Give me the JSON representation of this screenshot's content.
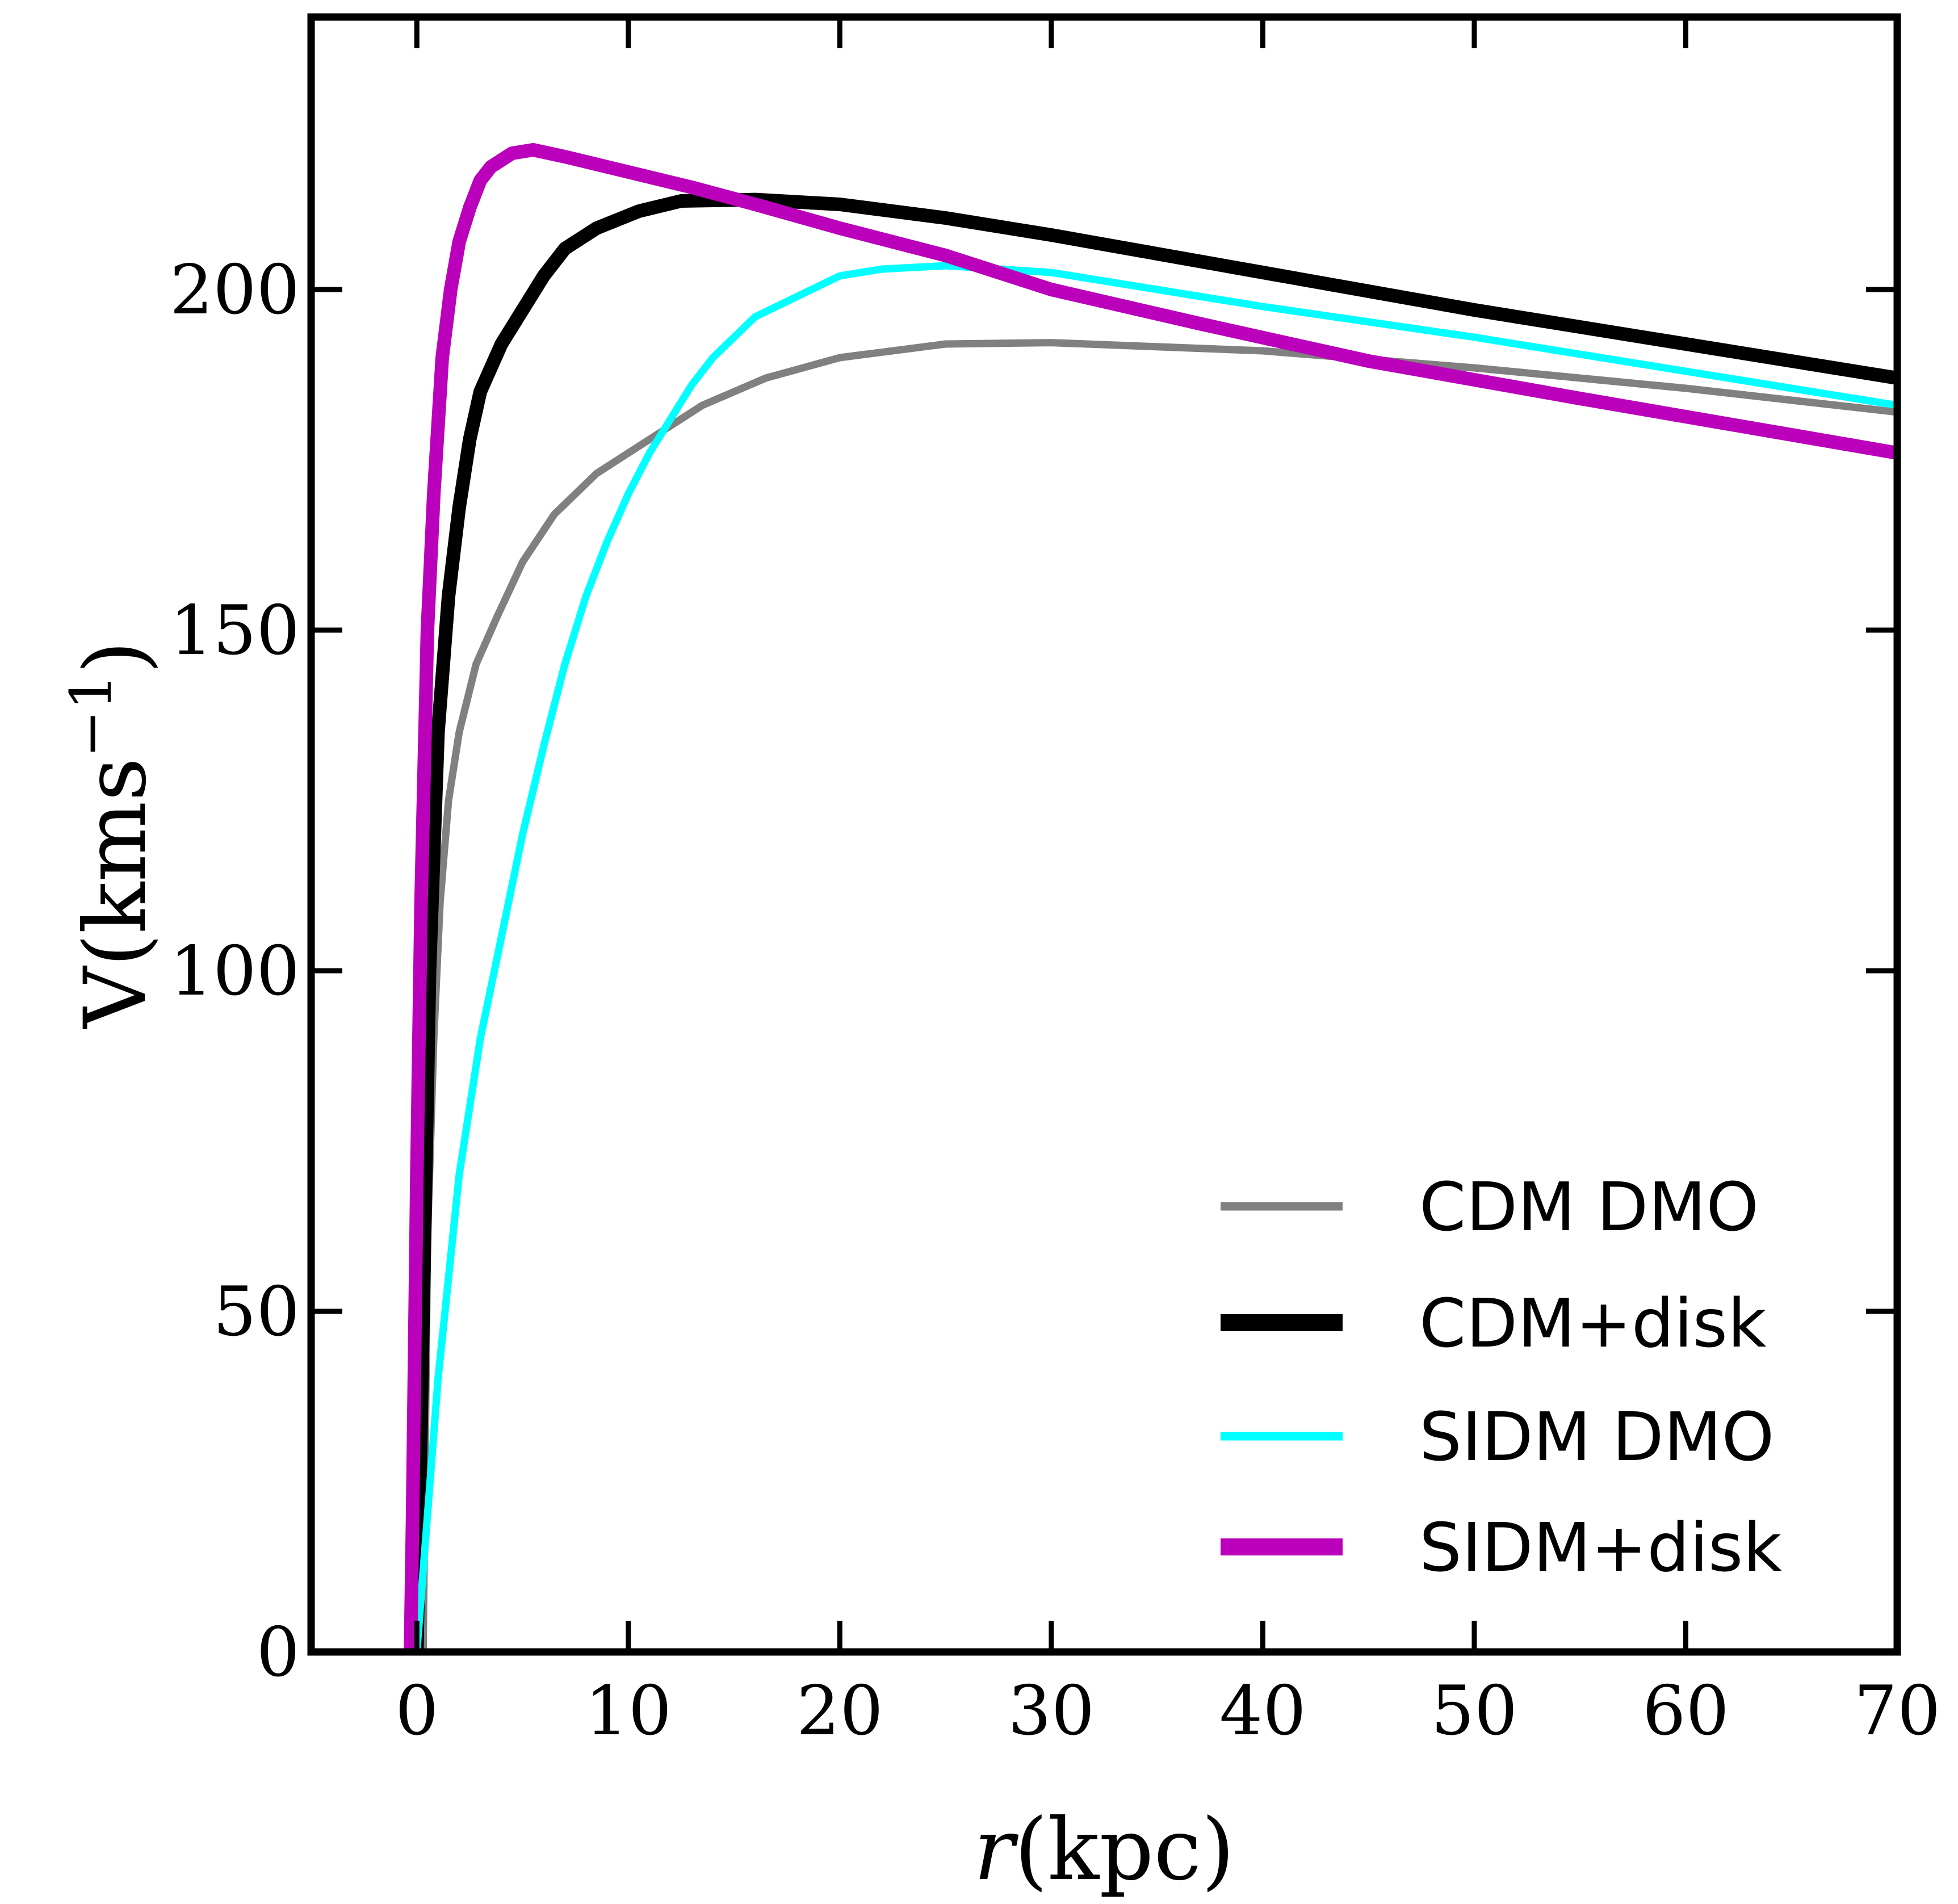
{
  "chart_data": {
    "type": "line",
    "xlabel": "r(kpc)",
    "ylabel": "V(kms",
    "ylabel_superscript": "−1",
    "ylabel_close": ")",
    "xlim": [
      -5,
      70
    ],
    "ylim": [
      0,
      240
    ],
    "xticks": [
      0,
      10,
      20,
      30,
      40,
      50,
      60,
      70
    ],
    "yticks": [
      0,
      50,
      100,
      150,
      200
    ],
    "x_tick_labels": [
      "0",
      "10",
      "20",
      "30",
      "40",
      "50",
      "60",
      "70"
    ],
    "y_tick_labels": [
      "0",
      "50",
      "100",
      "150",
      "200"
    ],
    "legend_position": "lower-right",
    "series": [
      {
        "name": "CDM DMO",
        "color": "#808080",
        "weight": "thin",
        "points": [
          [
            0.3,
            0
          ],
          [
            0.5,
            60
          ],
          [
            0.8,
            90
          ],
          [
            1.1,
            110
          ],
          [
            1.5,
            125
          ],
          [
            2,
            135
          ],
          [
            2.8,
            145
          ],
          [
            3.8,
            152
          ],
          [
            5,
            160
          ],
          [
            6.5,
            167
          ],
          [
            8.5,
            173
          ],
          [
            11,
            178
          ],
          [
            13.5,
            183
          ],
          [
            16.5,
            187
          ],
          [
            20,
            190
          ],
          [
            25,
            192
          ],
          [
            30,
            192.2
          ],
          [
            40,
            191
          ],
          [
            50,
            188.5
          ],
          [
            60,
            185.5
          ],
          [
            70,
            182
          ]
        ]
      },
      {
        "name": "CDM+disk",
        "color": "#000000",
        "weight": "thick",
        "points": [
          [
            0,
            0
          ],
          [
            0.3,
            50
          ],
          [
            0.6,
            100
          ],
          [
            1,
            135
          ],
          [
            1.5,
            155
          ],
          [
            2,
            168
          ],
          [
            2.5,
            178
          ],
          [
            3,
            185
          ],
          [
            4,
            192
          ],
          [
            5,
            197
          ],
          [
            6,
            202
          ],
          [
            7,
            206
          ],
          [
            8.5,
            209
          ],
          [
            10.5,
            211.5
          ],
          [
            12.5,
            213
          ],
          [
            16,
            213.2
          ],
          [
            20,
            212.5
          ],
          [
            25,
            210.5
          ],
          [
            30,
            208
          ],
          [
            40,
            202.5
          ],
          [
            50,
            197
          ],
          [
            60,
            192
          ],
          [
            70,
            187
          ]
        ]
      },
      {
        "name": "SIDM DMO",
        "color": "#00ffff",
        "weight": "thin",
        "points": [
          [
            0,
            0
          ],
          [
            1,
            40
          ],
          [
            2,
            70
          ],
          [
            3,
            90
          ],
          [
            4,
            105
          ],
          [
            5,
            120
          ],
          [
            6,
            133
          ],
          [
            7,
            145
          ],
          [
            8,
            155
          ],
          [
            9,
            163
          ],
          [
            10,
            170
          ],
          [
            11,
            176
          ],
          [
            12,
            181
          ],
          [
            13,
            186
          ],
          [
            14,
            190
          ],
          [
            16,
            196
          ],
          [
            18,
            199
          ],
          [
            20,
            202
          ],
          [
            22,
            203
          ],
          [
            25,
            203.5
          ],
          [
            30,
            202.5
          ],
          [
            40,
            197.5
          ],
          [
            50,
            193
          ],
          [
            60,
            188
          ],
          [
            70,
            183
          ]
        ]
      },
      {
        "name": "SIDM+disk",
        "color": "#bb00bb",
        "weight": "thick",
        "points": [
          [
            -0.3,
            0
          ],
          [
            -0.2,
            20
          ],
          [
            0,
            70
          ],
          [
            0.2,
            110
          ],
          [
            0.5,
            150
          ],
          [
            0.8,
            170
          ],
          [
            1.2,
            190
          ],
          [
            1.6,
            200
          ],
          [
            2,
            207
          ],
          [
            2.5,
            212
          ],
          [
            3,
            216
          ],
          [
            3.5,
            218
          ],
          [
            4.5,
            220
          ],
          [
            5.5,
            220.5
          ],
          [
            7,
            219.5
          ],
          [
            9,
            218
          ],
          [
            11,
            216.5
          ],
          [
            13,
            215
          ],
          [
            16,
            212.5
          ],
          [
            20,
            209
          ],
          [
            25,
            205
          ],
          [
            30,
            200
          ],
          [
            37,
            195
          ],
          [
            45,
            189.5
          ],
          [
            55,
            184
          ],
          [
            70,
            176
          ]
        ]
      }
    ]
  }
}
